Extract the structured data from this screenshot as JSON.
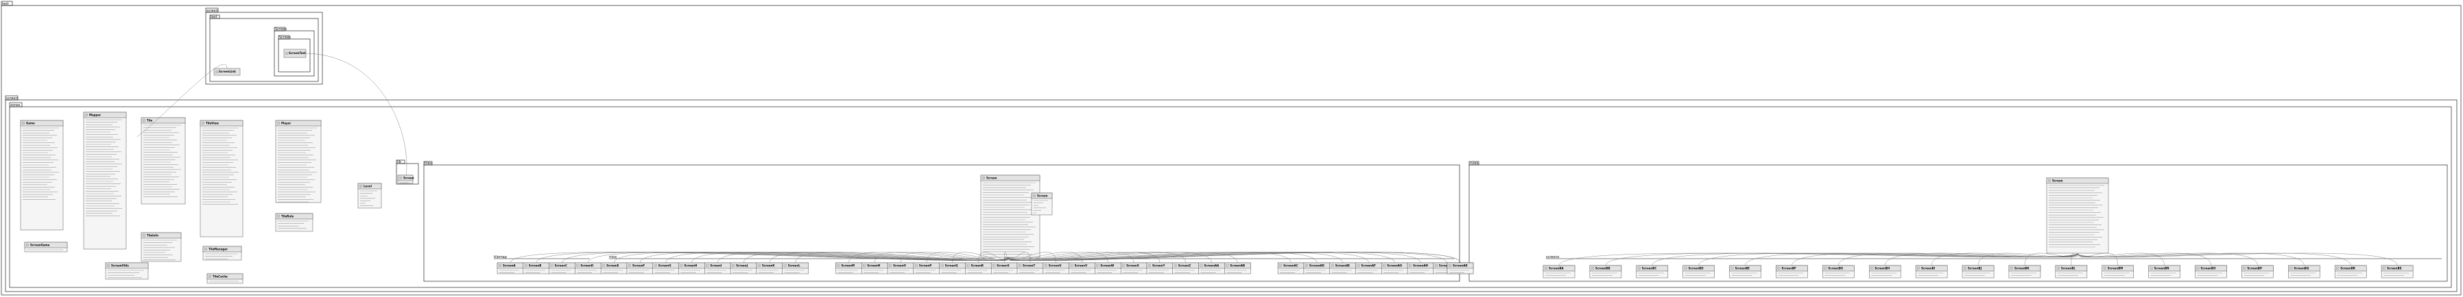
{
  "diagram": {
    "packages": {
      "outer": "test",
      "upper": "screen",
      "upper_inner": "test",
      "upper_inner2": "Screen",
      "upper_inner3": "Screen",
      "main": "screen",
      "zones": "zones",
      "lib": "lib",
      "tiles": "tiles",
      "rules": "rules",
      "misc": "misc",
      "vision": "vision",
      "screens_left": "tilemap",
      "screens_right": "screens"
    },
    "upper_class": "ScreenTest",
    "upper_link": "ScreenLink",
    "left_classes": [
      {
        "name": "Game",
        "lines": 30
      },
      {
        "name": "ScreenGame",
        "lines": 4
      },
      {
        "name": "Mapper",
        "lines": 40
      },
      {
        "name": "Tile",
        "lines": 30
      },
      {
        "name": "TileView",
        "lines": 32
      },
      {
        "name": "TileInfo",
        "lines": 10
      },
      {
        "name": "Player",
        "lines": 40
      },
      {
        "name": "TileRule",
        "lines": 6
      },
      {
        "name": "TileManager",
        "lines": 12
      },
      {
        "name": "TileCache",
        "lines": 4
      },
      {
        "name": "Level",
        "lines": 7
      },
      {
        "name": "Screen",
        "lines": 5
      },
      {
        "name": "ScreenUtils",
        "lines": 4
      }
    ],
    "center_hub": "Screen",
    "right_hub": "Screen",
    "legend": "Screen",
    "center_leaves": [
      "ScreenA",
      "ScreenB",
      "ScreenC",
      "ScreenD",
      "ScreenE",
      "ScreenF",
      "ScreenG",
      "ScreenH",
      "ScreenI",
      "ScreenJ",
      "ScreenK",
      "ScreenL",
      "ScreenM",
      "ScreenN",
      "ScreenO",
      "ScreenP",
      "ScreenQ",
      "ScreenR",
      "ScreenS",
      "ScreenT",
      "ScreenU",
      "ScreenV",
      "ScreenW",
      "ScreenX",
      "ScreenY",
      "ScreenZ",
      "ScreenAA",
      "ScreenAB",
      "ScreenAC",
      "ScreenAD",
      "ScreenAE",
      "ScreenAF",
      "ScreenAG",
      "ScreenAH",
      "ScreenAI",
      "ScreenAJ",
      "ScreenAK"
    ],
    "right_leaves": [
      "ScreenBA",
      "ScreenBB",
      "ScreenBC",
      "ScreenBD",
      "ScreenBE",
      "ScreenBF",
      "ScreenBG",
      "ScreenBH",
      "ScreenBI",
      "ScreenBJ",
      "ScreenBK",
      "ScreenBL",
      "ScreenBM",
      "ScreenBN",
      "ScreenBO",
      "ScreenBP",
      "ScreenBQ",
      "ScreenBR",
      "ScreenBS"
    ]
  }
}
